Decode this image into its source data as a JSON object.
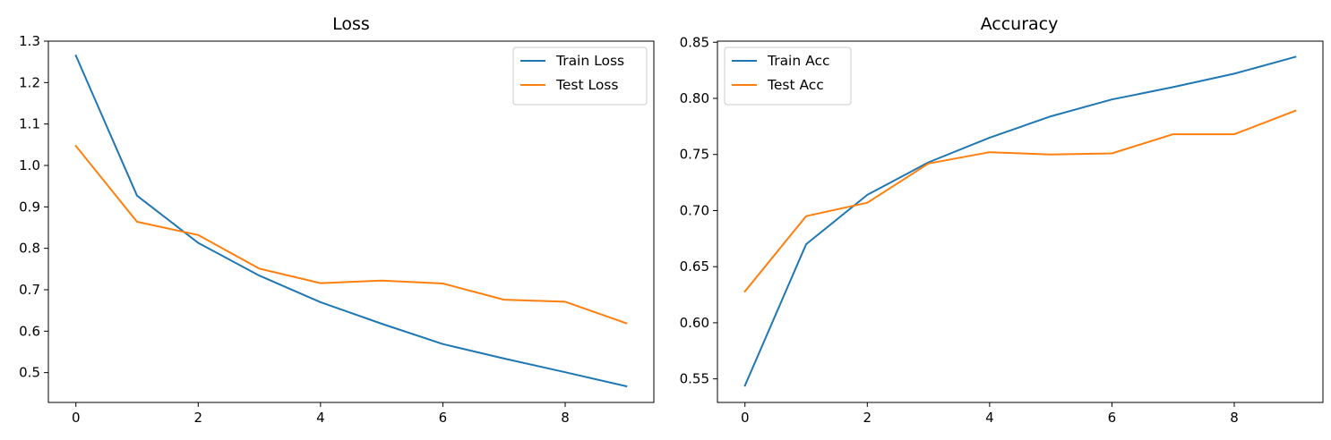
{
  "chart_data": [
    {
      "type": "line",
      "title": "Loss",
      "xlabel": "",
      "ylabel": "",
      "x": [
        0,
        1,
        2,
        3,
        4,
        5,
        6,
        7,
        8,
        9
      ],
      "xlim": [
        -0.45,
        9.45
      ],
      "ylim": [
        0.428,
        1.3
      ],
      "xticks": [
        0,
        2,
        4,
        6,
        8
      ],
      "yticks": [
        0.5,
        0.6,
        0.7,
        0.8,
        0.9,
        1.0,
        1.1,
        1.2,
        1.3
      ],
      "xtick_labels": [
        "0",
        "2",
        "4",
        "6",
        "8"
      ],
      "ytick_labels": [
        "0.5",
        "0.6",
        "0.7",
        "0.8",
        "0.9",
        "1.0",
        "1.1",
        "1.2",
        "1.3"
      ],
      "grid": false,
      "legend": "top-right",
      "series": [
        {
          "name": "Train Loss",
          "color": "#1f77b4",
          "values": [
            1.265,
            0.927,
            0.813,
            0.734,
            0.67,
            0.618,
            0.569,
            0.534,
            0.501,
            0.467
          ]
        },
        {
          "name": "Test Loss",
          "color": "#ff7f0e",
          "values": [
            1.047,
            0.864,
            0.832,
            0.751,
            0.716,
            0.722,
            0.715,
            0.676,
            0.671,
            0.619
          ]
        }
      ]
    },
    {
      "type": "line",
      "title": "Accuracy",
      "xlabel": "",
      "ylabel": "",
      "x": [
        0,
        1,
        2,
        3,
        4,
        5,
        6,
        7,
        8,
        9
      ],
      "xlim": [
        -0.45,
        9.45
      ],
      "ylim": [
        0.529,
        0.851
      ],
      "xticks": [
        0,
        2,
        4,
        6,
        8
      ],
      "yticks": [
        0.55,
        0.6,
        0.65,
        0.7,
        0.75,
        0.8,
        0.85
      ],
      "xtick_labels": [
        "0",
        "2",
        "4",
        "6",
        "8"
      ],
      "ytick_labels": [
        "0.55",
        "0.60",
        "0.65",
        "0.70",
        "0.75",
        "0.80",
        "0.85"
      ],
      "grid": false,
      "legend": "top-left",
      "series": [
        {
          "name": "Train Acc",
          "color": "#1f77b4",
          "values": [
            0.544,
            0.67,
            0.714,
            0.743,
            0.765,
            0.784,
            0.799,
            0.81,
            0.822,
            0.837
          ]
        },
        {
          "name": "Test Acc",
          "color": "#ff7f0e",
          "values": [
            0.628,
            0.695,
            0.707,
            0.742,
            0.752,
            0.75,
            0.751,
            0.768,
            0.768,
            0.789
          ]
        }
      ]
    }
  ]
}
